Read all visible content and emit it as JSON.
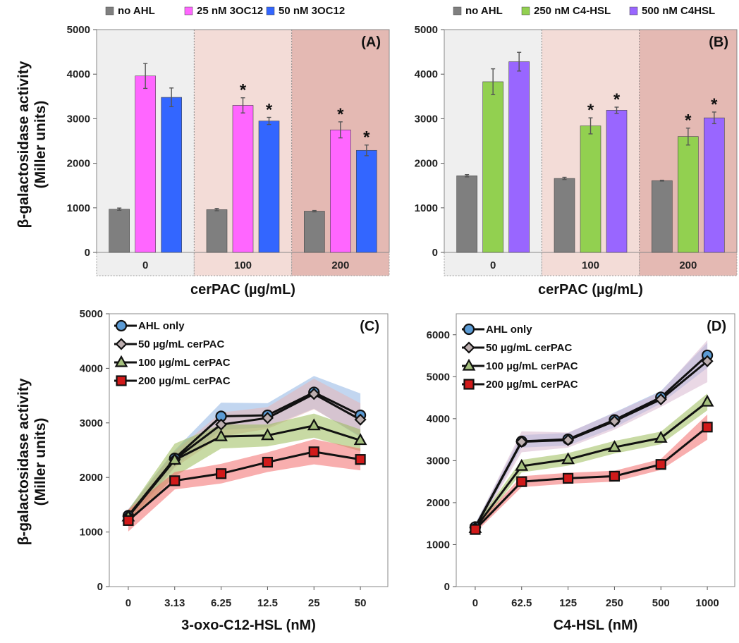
{
  "figure": {
    "ylabel_line1": "β-galactosidase activity",
    "ylabel_line2": "(Miller units)"
  },
  "chart_data": [
    {
      "id": "A",
      "type": "bar",
      "panel_label": "(A)",
      "xlabel": "cerPAC (µg/mL)",
      "categories": [
        "0",
        "100",
        "200"
      ],
      "category_shading": [
        "#efefef",
        "#f3dcd7",
        "#e4b9b3"
      ],
      "ylim": [
        0,
        5000
      ],
      "yticks": [
        0,
        1000,
        2000,
        3000,
        4000,
        5000
      ],
      "legend_position": "top",
      "series": [
        {
          "name": "no AHL",
          "color": "#7f7f7f",
          "values": [
            970,
            960,
            925
          ],
          "errors": [
            25,
            25,
            15
          ],
          "significant": [
            false,
            false,
            false
          ]
        },
        {
          "name": "25 nM 3OC12",
          "color": "#ff66ff",
          "values": [
            3960,
            3300,
            2750
          ],
          "errors": [
            280,
            170,
            180
          ],
          "significant": [
            false,
            true,
            true
          ]
        },
        {
          "name": "50 nM 3OC12",
          "color": "#3366ff",
          "values": [
            3480,
            2950,
            2290
          ],
          "errors": [
            210,
            80,
            120
          ],
          "significant": [
            false,
            true,
            true
          ]
        }
      ]
    },
    {
      "id": "B",
      "type": "bar",
      "panel_label": "(B)",
      "xlabel": "cerPAC (µg/mL)",
      "categories": [
        "0",
        "100",
        "200"
      ],
      "category_shading": [
        "#efefef",
        "#f3dcd7",
        "#e4b9b3"
      ],
      "ylim": [
        0,
        5000
      ],
      "yticks": [
        0,
        1000,
        2000,
        3000,
        4000,
        5000
      ],
      "legend_position": "top",
      "series": [
        {
          "name": "no AHL",
          "color": "#7f7f7f",
          "values": [
            1720,
            1660,
            1610
          ],
          "errors": [
            25,
            25,
            10
          ],
          "significant": [
            false,
            false,
            false
          ]
        },
        {
          "name": "250 nM C4-HSL",
          "color": "#92d050",
          "values": [
            3830,
            2840,
            2600
          ],
          "errors": [
            290,
            180,
            190
          ],
          "significant": [
            false,
            true,
            true
          ]
        },
        {
          "name": "500 nM C4HSL",
          "color": "#9966ff",
          "values": [
            4280,
            3190,
            3020
          ],
          "errors": [
            210,
            70,
            130
          ],
          "significant": [
            false,
            true,
            true
          ]
        }
      ]
    },
    {
      "id": "C",
      "type": "line",
      "panel_label": "(C)",
      "xlabel": "3-oxo-C12-HSL (nM)",
      "x": [
        "0",
        "3.13",
        "6.25",
        "12.5",
        "25",
        "50"
      ],
      "ylim": [
        0,
        5000
      ],
      "yticks": [
        0,
        1000,
        2000,
        3000,
        4000,
        5000
      ],
      "legend_position": "top-left",
      "series": [
        {
          "name": "AHL only",
          "marker": "circle",
          "marker_fill": "#5b9bd5",
          "band_color": "#8fb4e3",
          "values": [
            1300,
            2350,
            3120,
            3140,
            3560,
            3140
          ],
          "errors": [
            120,
            150,
            250,
            220,
            300,
            400
          ]
        },
        {
          "name": "50 µg/mL cerPAC",
          "marker": "diamond",
          "marker_fill": "#bdafb0",
          "band_color": "#e8b6b6",
          "values": [
            1290,
            2330,
            2970,
            3090,
            3530,
            3060
          ],
          "errors": [
            120,
            150,
            220,
            200,
            280,
            300
          ]
        },
        {
          "name": "100 µg/mL cerPAC",
          "marker": "triangle",
          "marker_fill": "#a5c07e",
          "band_color": "#9bbb59",
          "values": [
            1280,
            2320,
            2750,
            2770,
            2950,
            2680
          ],
          "errors": [
            120,
            300,
            220,
            200,
            220,
            200
          ]
        },
        {
          "name": "200 µg/mL cerPAC",
          "marker": "square",
          "marker_fill": "#d11a1a",
          "band_color": "#f26b6b",
          "values": [
            1210,
            1940,
            2070,
            2280,
            2470,
            2330
          ],
          "errors": [
            200,
            160,
            180,
            180,
            230,
            200
          ]
        }
      ]
    },
    {
      "id": "D",
      "type": "line",
      "panel_label": "(D)",
      "xlabel": "C4-HSL (nM)",
      "x": [
        "0",
        "62.5",
        "125",
        "250",
        "500",
        "1000"
      ],
      "ylim": [
        0,
        6500
      ],
      "yticks": [
        0,
        1000,
        2000,
        3000,
        4000,
        5000,
        6000
      ],
      "legend_position": "top-left",
      "series": [
        {
          "name": "AHL only",
          "marker": "circle",
          "marker_fill": "#5b9bd5",
          "band_color": "#8fb4e3",
          "values": [
            1420,
            3460,
            3510,
            3970,
            4510,
            5510
          ],
          "errors": [
            80,
            150,
            150,
            180,
            150,
            300
          ]
        },
        {
          "name": "50 µg/mL cerPAC",
          "marker": "diamond",
          "marker_fill": "#bdafb0",
          "band_color": "#d8b8cf",
          "values": [
            1400,
            3450,
            3490,
            3940,
            4460,
            5370
          ],
          "errors": [
            80,
            250,
            180,
            200,
            180,
            500
          ]
        },
        {
          "name": "100 µg/mL cerPAC",
          "marker": "triangle",
          "marker_fill": "#a5c07e",
          "band_color": "#9bbb59",
          "values": [
            1390,
            2870,
            3030,
            3320,
            3540,
            4400
          ],
          "errors": [
            80,
            150,
            150,
            150,
            150,
            200
          ]
        },
        {
          "name": "200 µg/mL cerPAC",
          "marker": "square",
          "marker_fill": "#d11a1a",
          "band_color": "#f26b6b",
          "values": [
            1360,
            2500,
            2580,
            2630,
            2910,
            3800
          ],
          "errors": [
            80,
            130,
            130,
            130,
            130,
            300
          ]
        }
      ]
    }
  ]
}
